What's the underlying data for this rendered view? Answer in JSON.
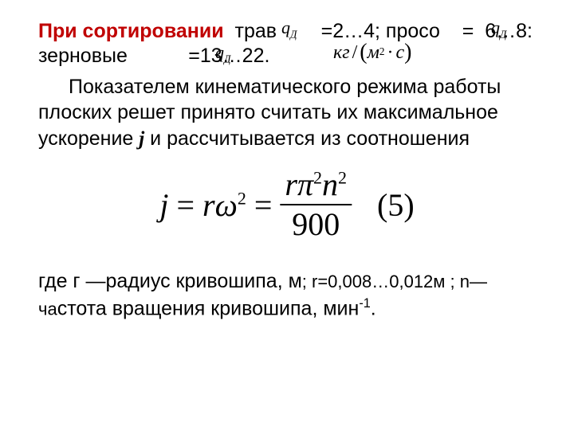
{
  "colors": {
    "accent": "#c00000",
    "text": "#000000",
    "background": "#ffffff"
  },
  "para1": {
    "accent": "При  сортировании",
    "rest1": "  трав        =2…4; просо    =  6…8: зерновые           =13…22."
  },
  "overlays": {
    "qd1_html": "q<sub>Д</sub>",
    "qd2_html": "q<sub>Д</sub>",
    "qd3_html": "q<sub>Д</sub>",
    "unit_kg": "кг",
    "unit_m": "м",
    "unit_c": "с"
  },
  "para2": {
    "line": "Показателем кинематического режима работы плоских решет принято считать их максимальное ускорение  ",
    "j": "j",
    "line2": "  и рассчитывается  из соотношения"
  },
  "formula": {
    "lhs_j": "j",
    "eq": " = ",
    "r": "r",
    "omega": "ω",
    "sq": "2",
    "pi": "π",
    "n": "n",
    "den": "900",
    "eqnum": "(5)"
  },
  "para3": {
    "t1": "где г —радиус кривошипа, м",
    "t2": "; r=0,008…0,012м ;            n— ча",
    "t3": "стота вращения кривошипа, мин",
    "sup": "-1",
    "dot": "."
  }
}
